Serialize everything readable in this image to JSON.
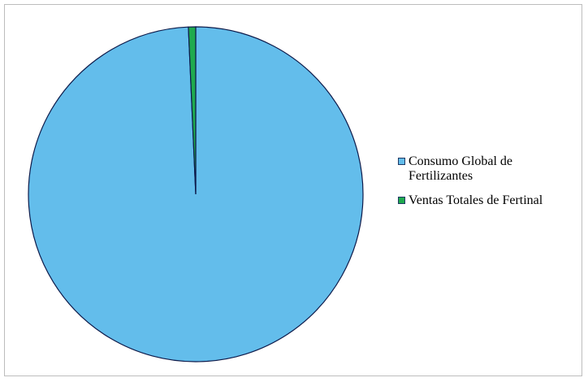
{
  "chart_data": {
    "type": "pie",
    "title": "",
    "slices": [
      {
        "label": "Consumo Global de Fertilizantes",
        "value": 99.3,
        "color": "#63bdeb"
      },
      {
        "label": "Ventas Totales de Fertinal",
        "value": 0.7,
        "color": "#1faa4e"
      }
    ],
    "legend": {
      "position": "right"
    },
    "edge_color": "#0d1a4a"
  }
}
